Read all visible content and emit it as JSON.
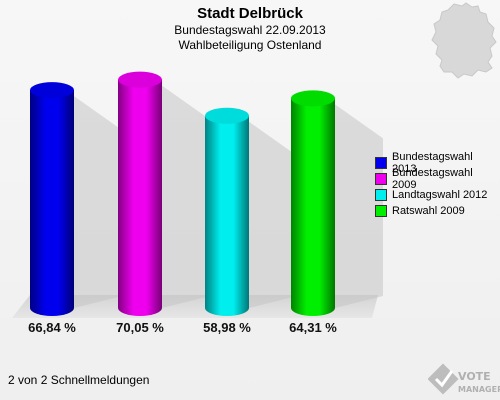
{
  "header": {
    "title": "Stadt Delbrück",
    "subtitle1": "Bundestagswahl 22.09.2013",
    "subtitle2": "Wahlbeteiligung Ostenland"
  },
  "chart_data": {
    "type": "bar",
    "title": "Stadt Delbrück",
    "categories": [
      "Bundestagswahl 2013",
      "Bundestagswahl 2009",
      "Landtagswahl 2012",
      "Ratswahl 2009"
    ],
    "values": [
      66.84,
      70.05,
      58.98,
      64.31
    ],
    "value_labels": [
      "66,84 %",
      "70,05 %",
      "58,98 %",
      "64,31 %"
    ],
    "colors": [
      "#0000ee",
      "#ee00ee",
      "#00eeee",
      "#00ee00"
    ],
    "legend_position": "right",
    "grid": false
  },
  "legend": {
    "items": [
      {
        "label": "Bundestagswahl 2013",
        "color": "#0000ee"
      },
      {
        "label": "Bundestagswahl 2009",
        "color": "#ee00ee"
      },
      {
        "label": "Landtagswahl 2012",
        "color": "#00eeee"
      },
      {
        "label": "Ratswahl 2009",
        "color": "#00ee00"
      }
    ]
  },
  "footer": {
    "text": "2 von 2 Schnellmeldungen"
  },
  "logo": {
    "line1": "VOTE",
    "line2": "MANAGER"
  }
}
